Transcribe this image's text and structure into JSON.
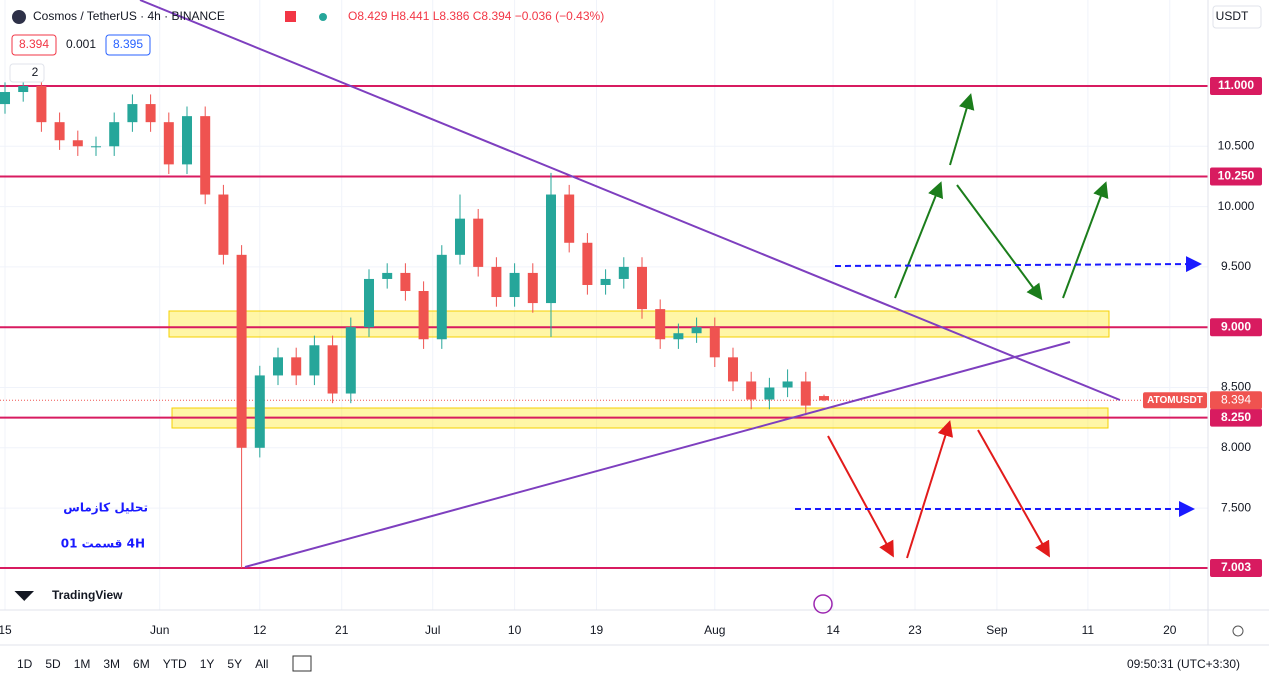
{
  "chart_data": {
    "type": "candlestick",
    "title": "Cosmos / TetherUS · 4h · BINANCE",
    "ohlc_text": "O8.429 H8.441 L8.386 C8.394 −0.036 (−0.43%)",
    "bid": "8.394",
    "spread": "0.001",
    "ask": "8.395",
    "indicator_count": "2",
    "currency": "USDT",
    "up_color": "#26a69a",
    "down_color": "#ef5350",
    "x": [
      0,
      2,
      4,
      6,
      8,
      10,
      12,
      14,
      16,
      18,
      20,
      22,
      24,
      26,
      28,
      30,
      32,
      34,
      36,
      38,
      40,
      42,
      44,
      46,
      48,
      50,
      52,
      54,
      56,
      58,
      60,
      62,
      64,
      66,
      68,
      70,
      72,
      74,
      76,
      78,
      80,
      82,
      84,
      86,
      88,
      90
    ],
    "open": [
      10.85,
      10.95,
      11.0,
      10.7,
      10.55,
      10.5,
      10.5,
      10.7,
      10.85,
      10.7,
      10.35,
      10.75,
      10.1,
      9.6,
      8.0,
      8.6,
      8.75,
      8.6,
      8.85,
      8.45,
      9.0,
      9.4,
      9.45,
      9.3,
      8.9,
      9.6,
      9.9,
      9.5,
      9.25,
      9.45,
      9.2,
      10.1,
      9.7,
      9.35,
      9.4,
      9.5,
      9.15,
      8.9,
      8.95,
      9.0,
      8.75,
      8.55,
      8.4,
      8.5,
      8.55,
      8.429
    ],
    "high": [
      11.03,
      11.08,
      11.08,
      10.78,
      10.63,
      10.58,
      10.78,
      10.93,
      10.93,
      10.78,
      10.83,
      10.83,
      10.18,
      9.68,
      8.68,
      8.83,
      8.83,
      8.93,
      8.93,
      9.08,
      9.48,
      9.53,
      9.53,
      9.38,
      9.68,
      10.1,
      9.98,
      9.58,
      9.53,
      9.53,
      10.28,
      10.18,
      9.78,
      9.48,
      9.58,
      9.58,
      9.23,
      9.03,
      9.08,
      9.08,
      8.83,
      8.63,
      8.58,
      8.65,
      8.63,
      8.441
    ],
    "low": [
      10.77,
      10.87,
      10.62,
      10.47,
      10.42,
      10.42,
      10.42,
      10.62,
      10.62,
      10.27,
      10.27,
      10.02,
      9.52,
      7.003,
      7.92,
      8.52,
      8.52,
      8.52,
      8.37,
      8.37,
      8.92,
      9.32,
      9.22,
      8.82,
      8.82,
      9.52,
      9.42,
      9.17,
      9.17,
      9.12,
      8.92,
      9.62,
      9.27,
      9.27,
      9.32,
      9.07,
      8.82,
      8.82,
      8.87,
      8.67,
      8.47,
      8.32,
      8.32,
      8.42,
      8.27,
      8.386
    ],
    "close": [
      10.95,
      11.0,
      10.7,
      10.55,
      10.5,
      10.5,
      10.7,
      10.85,
      10.7,
      10.35,
      10.75,
      10.1,
      9.6,
      8.0,
      8.6,
      8.75,
      8.6,
      8.85,
      8.45,
      9.0,
      9.4,
      9.45,
      9.3,
      8.9,
      9.6,
      9.9,
      9.5,
      9.25,
      9.45,
      9.2,
      10.1,
      9.7,
      9.35,
      9.4,
      9.5,
      9.15,
      8.9,
      8.95,
      9.0,
      8.75,
      8.55,
      8.4,
      8.5,
      8.55,
      8.35,
      8.394
    ],
    "xlim": [
      -0.55,
      132.2
    ],
    "ylim": [
      6.655,
      11.713
    ],
    "xticks": [
      {
        "value": 0,
        "label": "15"
      },
      {
        "value": 17,
        "label": "Jun"
      },
      {
        "value": 28,
        "label": "12"
      },
      {
        "value": 37,
        "label": "21"
      },
      {
        "value": 47,
        "label": "Jul"
      },
      {
        "value": 56,
        "label": "10"
      },
      {
        "value": 65,
        "label": "19"
      },
      {
        "value": 78,
        "label": "Aug"
      },
      {
        "value": 91,
        "label": "14"
      },
      {
        "value": 100,
        "label": "23"
      },
      {
        "value": 109,
        "label": "Sep"
      },
      {
        "value": 119,
        "label": "11"
      },
      {
        "value": 128,
        "label": "20"
      }
    ],
    "yticks": [
      {
        "value": 10.5,
        "label": "10.500"
      },
      {
        "value": 10,
        "label": "10.000"
      },
      {
        "value": 9.5,
        "label": "9.500"
      },
      {
        "value": 8.5,
        "label": "8.500"
      },
      {
        "value": 8,
        "label": "8.000"
      },
      {
        "value": 7.5,
        "label": "7.500"
      }
    ],
    "levels": [
      {
        "value": 11,
        "label": "11.000"
      },
      {
        "value": 10.25,
        "label": "10.250"
      },
      {
        "value": 9,
        "label": "9.000"
      },
      {
        "value": 8.25,
        "label": "8.250"
      },
      {
        "value": 7.003,
        "label": "7.003"
      }
    ],
    "level_color": "#d81b60",
    "last_price": {
      "value": 8.394,
      "label": "8.394",
      "symbol": "ATOMUSDT"
    },
    "annotation_title": "تحلیل کازماس",
    "annotation_subtitle": "4H  قسمت 01",
    "logo": "TradingView",
    "timeframes": [
      "1D",
      "5D",
      "1M",
      "3M",
      "6M",
      "YTD",
      "1Y",
      "5Y",
      "All"
    ],
    "clock": "09:50:31 (UTC+3:30)"
  }
}
